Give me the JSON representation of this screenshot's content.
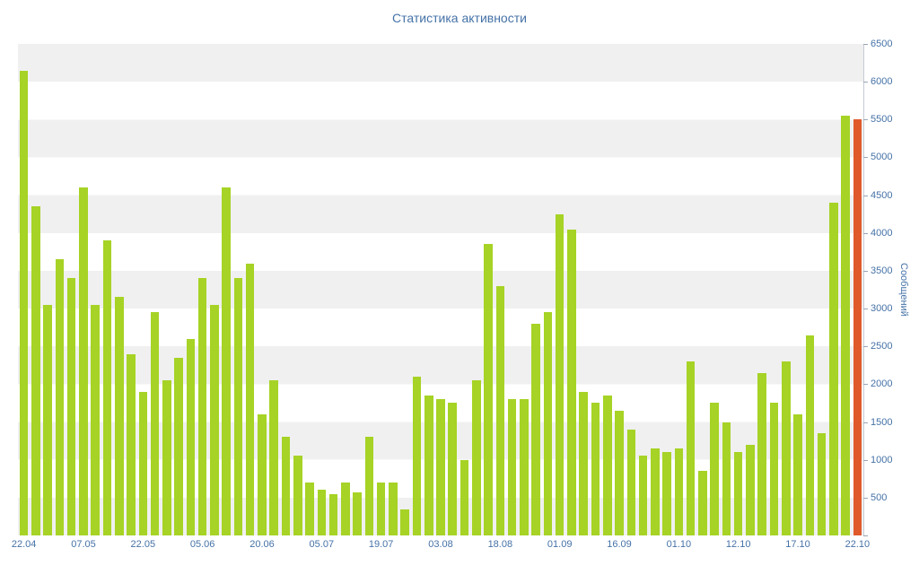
{
  "chart_data": {
    "type": "bar",
    "title": "Статистика активности",
    "xlabel": "",
    "ylabel": "Сообщений",
    "ylim": [
      0,
      6500
    ],
    "y_tick_step": 500,
    "y_tick_labels": [
      "500",
      "1000",
      "1500",
      "2000",
      "2500",
      "3000",
      "3500",
      "4000",
      "4500",
      "5000",
      "5500",
      "6000",
      "6500"
    ],
    "x_tick_labels": [
      "22.04",
      "07.05",
      "22.05",
      "05.06",
      "20.06",
      "05.07",
      "19.07",
      "03.08",
      "18.08",
      "01.09",
      "16.09",
      "01.10",
      "12.10",
      "17.10",
      "22.10"
    ],
    "x_tick_every": 5,
    "series": [
      {
        "name": "Сообщений",
        "values": [
          6150,
          4350,
          3050,
          3650,
          3400,
          4600,
          3050,
          3900,
          3150,
          2400,
          1900,
          2950,
          2050,
          2350,
          2600,
          3400,
          3050,
          4600,
          3400,
          3600,
          1600,
          2050,
          1300,
          1050,
          700,
          600,
          550,
          700,
          570,
          1300,
          700,
          700,
          350,
          2100,
          1850,
          1800,
          1750,
          1000,
          2050,
          3850,
          3300,
          1800,
          1800,
          2800,
          2950,
          4250,
          4050,
          1900,
          1750,
          1850,
          1650,
          1400,
          1050,
          1150,
          1100,
          1150,
          2300,
          850,
          1750,
          1500,
          1100,
          1200,
          2150,
          1750,
          2300,
          1600,
          2650,
          1350,
          4400,
          5550,
          5500
        ]
      }
    ],
    "highlight_last_bar": true,
    "legend": "off",
    "grid": "alternating-bands",
    "colors": {
      "bar": "#a6d325",
      "last_bar": "#e0592b",
      "band": "#f0f0f0",
      "band_alt": "#ffffff",
      "axis_text": "#4572a7",
      "axis_line": "#c7ccd4",
      "tick_mark": "#9aa5b4"
    }
  }
}
